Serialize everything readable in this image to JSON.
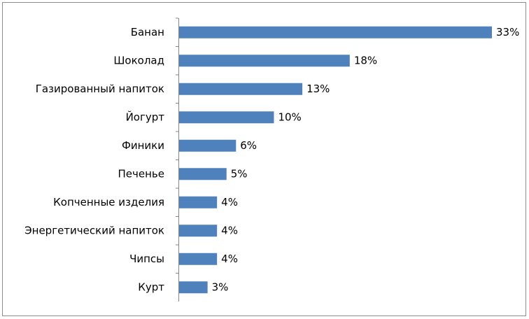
{
  "chart_data": {
    "type": "bar",
    "orientation": "horizontal",
    "categories": [
      "Банан",
      "Шоколад",
      "Газированный напиток",
      "Йогурт",
      "Финики",
      "Печенье",
      "Копченные изделия",
      "Энергетический напиток",
      "Чипсы",
      "Курт"
    ],
    "values": [
      33,
      18,
      13,
      10,
      6,
      5,
      4,
      4,
      4,
      3
    ],
    "value_labels": [
      "33%",
      "18%",
      "13%",
      "10%",
      "6%",
      "5%",
      "4%",
      "4%",
      "4%",
      "3%"
    ],
    "color": "#4f81bd"
  }
}
